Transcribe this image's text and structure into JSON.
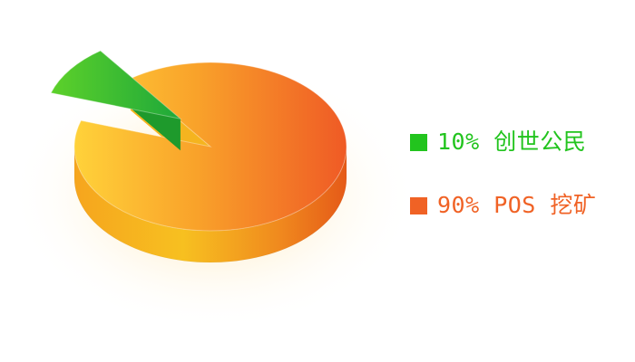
{
  "colors": {
    "green": "#22c41e",
    "orange": "#f06225"
  },
  "chart_data": {
    "type": "pie",
    "title": "",
    "slices": [
      {
        "label": "创世公民",
        "value": 10,
        "display": "10% 创世公民",
        "color": "#22c41e",
        "exploded": true
      },
      {
        "label": "POS 挖矿",
        "value": 90,
        "display": "90% POS 挖矿",
        "color": "#f06225",
        "exploded": false
      }
    ],
    "legend_position": "right",
    "style": "3d-exploded"
  }
}
